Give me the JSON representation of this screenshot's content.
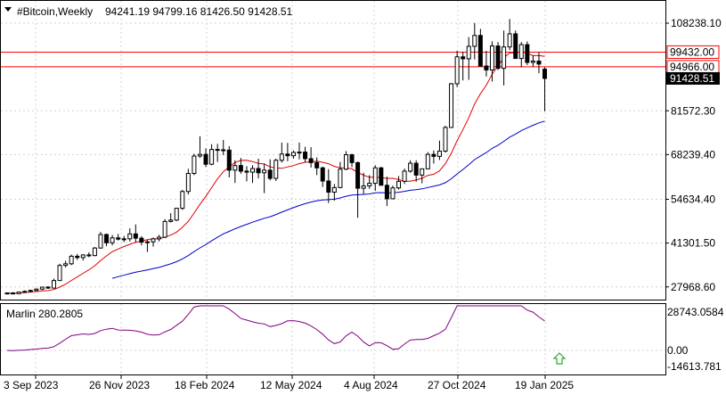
{
  "header": {
    "symbol_text": "#Bitcoin,Weekly",
    "ohlc_text": "94241.19 94799.16 81426.50 91428.51"
  },
  "indicator": {
    "label": "Marlin 280.2805",
    "ticks": [
      "28743.0584",
      "0.00",
      "-14613.781"
    ],
    "color": "#800080"
  },
  "price_axis": {
    "ticks": [
      "108238.10",
      "81572.30",
      "68239.40",
      "54634.40",
      "41301.50",
      "27968.60"
    ]
  },
  "levels": [
    {
      "label": "99432.00",
      "value": 99432.0,
      "color": "#ff0000"
    },
    {
      "label": "94966.00",
      "value": 94966.0,
      "color": "#ff0000"
    }
  ],
  "current_price": {
    "label": "91428.51",
    "value": 91428.51
  },
  "time_axis": [
    "3 Sep 2023",
    "26 Nov 2023",
    "18 Feb 2024",
    "12 May 2024",
    "4 Aug 2024",
    "27 Oct 2024",
    "19 Jan 2025"
  ],
  "colors": {
    "bg": "#ffffff",
    "grid": "#d3d3d3",
    "ma_fast": "#e00000",
    "ma_slow": "#0000cc",
    "arrow": "#32a832"
  },
  "chart_data": {
    "type": "candlestick",
    "timeframe": "Weekly",
    "candles": [
      [
        26000,
        26300,
        25700,
        26100
      ],
      [
        26100,
        26400,
        25800,
        25900
      ],
      [
        25900,
        26500,
        25700,
        26400
      ],
      [
        26400,
        26900,
        26100,
        26600
      ],
      [
        26600,
        27100,
        26300,
        26900
      ],
      [
        26900,
        27500,
        26700,
        27300
      ],
      [
        27300,
        28000,
        27000,
        27900
      ],
      [
        27900,
        28200,
        27400,
        27600
      ],
      [
        27600,
        30500,
        27500,
        29900
      ],
      [
        29900,
        35000,
        29800,
        34500
      ],
      [
        34500,
        35900,
        33900,
        35000
      ],
      [
        35000,
        37800,
        34600,
        37300
      ],
      [
        37300,
        38000,
        36200,
        36900
      ],
      [
        36900,
        37900,
        36000,
        37700
      ],
      [
        37700,
        38500,
        37000,
        37500
      ],
      [
        37500,
        40100,
        37300,
        39800
      ],
      [
        39800,
        44700,
        39600,
        43900
      ],
      [
        43900,
        44200,
        40400,
        41400
      ],
      [
        41400,
        43800,
        40600,
        42900
      ],
      [
        42900,
        44100,
        42100,
        42500
      ],
      [
        42500,
        43500,
        41600,
        42600
      ],
      [
        42600,
        45800,
        41800,
        44100
      ],
      [
        44100,
        47000,
        41500,
        42800
      ],
      [
        42800,
        43400,
        40600,
        41600
      ],
      [
        41600,
        42200,
        38600,
        41700
      ],
      [
        41700,
        43000,
        40200,
        42600
      ],
      [
        42600,
        43800,
        41800,
        43100
      ],
      [
        43100,
        48600,
        42800,
        47900
      ],
      [
        47900,
        50400,
        47600,
        48300
      ],
      [
        48300,
        52000,
        48000,
        51900
      ],
      [
        51900,
        57500,
        51400,
        57000
      ],
      [
        57000,
        63900,
        56100,
        62500
      ],
      [
        62500,
        68500,
        62000,
        67800
      ],
      [
        67800,
        73800,
        67200,
        68300
      ],
      [
        68300,
        70100,
        64500,
        65300
      ],
      [
        65300,
        71400,
        65000,
        69800
      ],
      [
        69800,
        71500,
        66000,
        69700
      ],
      [
        69700,
        72700,
        68100,
        69600
      ],
      [
        69600,
        70800,
        61300,
        63500
      ],
      [
        63500,
        66500,
        59600,
        64900
      ],
      [
        64900,
        67200,
        62400,
        63200
      ],
      [
        63200,
        64700,
        60100,
        62900
      ],
      [
        62900,
        65000,
        59600,
        64000
      ],
      [
        64000,
        67000,
        61000,
        62700
      ],
      [
        62700,
        65500,
        56500,
        63500
      ],
      [
        63500,
        66800,
        60400,
        61000
      ],
      [
        61000,
        67000,
        60200,
        66500
      ],
      [
        66500,
        71900,
        65800,
        68400
      ],
      [
        68400,
        71800,
        66200,
        67900
      ],
      [
        67900,
        69500,
        67000,
        68900
      ],
      [
        68900,
        71900,
        66800,
        69000
      ],
      [
        69000,
        70600,
        65900,
        67000
      ],
      [
        67000,
        70500,
        64300,
        65800
      ],
      [
        65800,
        67400,
        62000,
        64200
      ],
      [
        64200,
        64600,
        58400,
        60200
      ],
      [
        60200,
        63800,
        53500,
        56800
      ],
      [
        56800,
        59300,
        54200,
        58200
      ],
      [
        58200,
        66000,
        58000,
        63800
      ],
      [
        63800,
        69300,
        63500,
        68200
      ],
      [
        68200,
        68500,
        64400,
        65800
      ],
      [
        65800,
        66100,
        49000,
        58000
      ],
      [
        58000,
        62700,
        56300,
        58700
      ],
      [
        58700,
        62000,
        57800,
        59500
      ],
      [
        59500,
        65000,
        57200,
        64200
      ],
      [
        64200,
        64500,
        58800,
        58900
      ],
      [
        58900,
        61500,
        52600,
        54800
      ],
      [
        54800,
        58800,
        55000,
        58100
      ],
      [
        58100,
        61700,
        57600,
        60100
      ],
      [
        60100,
        64000,
        59300,
        63200
      ],
      [
        63200,
        66500,
        62700,
        65600
      ],
      [
        65600,
        66500,
        60000,
        62000
      ],
      [
        62000,
        64000,
        59500,
        63900
      ],
      [
        63900,
        69000,
        63800,
        68300
      ],
      [
        68300,
        69500,
        65500,
        67700
      ],
      [
        67700,
        72500,
        66600,
        69300
      ],
      [
        69300,
        77000,
        68800,
        76500
      ],
      [
        76500,
        90000,
        76400,
        89800
      ],
      [
        89800,
        99800,
        88800,
        98000
      ],
      [
        98000,
        99500,
        90800,
        97400
      ],
      [
        97400,
        104000,
        91000,
        101200
      ],
      [
        101200,
        108300,
        97200,
        104500
      ],
      [
        104500,
        106500,
        95000,
        95200
      ],
      [
        95200,
        99800,
        92000,
        94000
      ],
      [
        94000,
        102700,
        90500,
        101300
      ],
      [
        101300,
        102500,
        94000,
        94500
      ],
      [
        94500,
        106000,
        89300,
        101000
      ],
      [
        101000,
        109500,
        100000,
        105000
      ],
      [
        105000,
        106000,
        97800,
        97500
      ],
      [
        97500,
        102500,
        94800,
        101700
      ],
      [
        101700,
        102700,
        95500,
        96300
      ],
      [
        96300,
        98500,
        95000,
        96700
      ],
      [
        96700,
        99400,
        93000,
        95800
      ],
      [
        94241.19,
        94799.16,
        81426.5,
        91428.51
      ]
    ],
    "levels": [
      99432.0,
      94966.0
    ]
  }
}
